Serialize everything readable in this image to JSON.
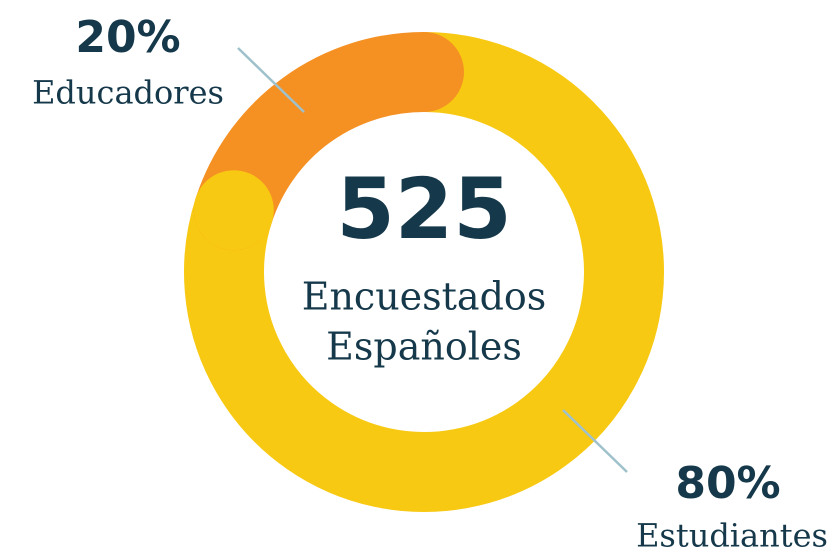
{
  "chart_data": {
    "type": "pie",
    "donut": true,
    "categories": [
      "Educadores",
      "Estudiantes"
    ],
    "values": [
      20,
      80
    ],
    "value_labels": [
      "20%",
      "80%"
    ],
    "colors": [
      "#f59023",
      "#f8c913"
    ],
    "total": 525,
    "center_label": [
      "Encuestados",
      "Españoles"
    ]
  }
}
